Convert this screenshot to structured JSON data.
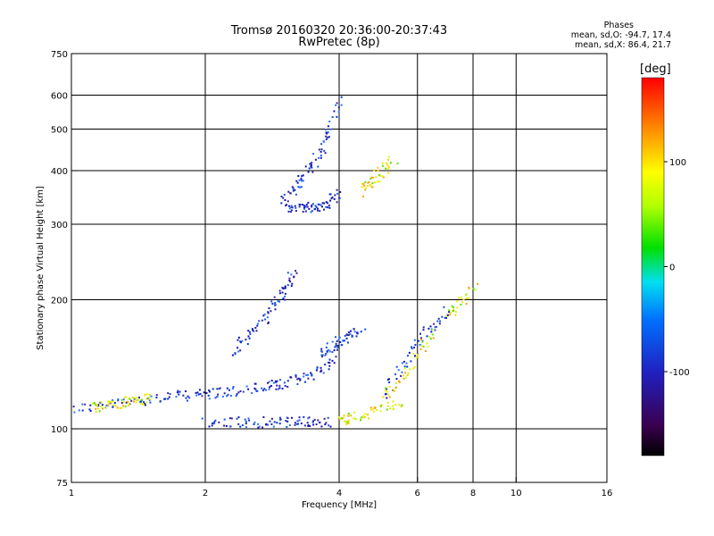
{
  "header": {
    "title_line1": "Tromsø 20160320 20:36:00-20:37:43",
    "title_line2": "RwPretec (8p)",
    "stats_title": "Phases",
    "stats_o": "mean, sd,O: -94.7, 17.4",
    "stats_x": "mean, sd,X:  86.4, 21.7"
  },
  "colorbar": {
    "unit_label": "[deg]",
    "ticks": [
      100,
      0,
      -100
    ],
    "range": [
      -180,
      180
    ]
  },
  "chart_data": {
    "type": "scatter",
    "xlabel": "Frequency [MHz]",
    "ylabel": "Stationary phase Virtual Height [km]",
    "x_scale": "log",
    "y_scale": "log",
    "xlim": [
      1,
      16
    ],
    "ylim": [
      75,
      750
    ],
    "x_ticks": [
      1,
      2,
      4,
      6,
      8,
      10,
      16
    ],
    "y_ticks": [
      75,
      100,
      200,
      300,
      400,
      500,
      600,
      750
    ],
    "grid": true,
    "color_variable": "phase [deg]",
    "series": [
      {
        "mode": "O",
        "traces": [
          {
            "x": [
              1.0,
              1.2,
              1.4,
              1.6,
              1.8,
              2.0,
              2.2,
              2.5,
              2.8,
              3.0,
              3.3,
              3.6,
              3.9
            ],
            "y": [
              112,
              114,
              117,
              119,
              120,
              121,
              122,
              124,
              126,
              128,
              132,
              138,
              145
            ]
          },
          {
            "x": [
              2.0,
              2.3,
              2.6,
              2.9,
              3.2,
              3.5,
              3.8
            ],
            "y": [
              104,
              104,
              104,
              104,
              104,
              104,
              104
            ]
          },
          {
            "x": [
              2.3,
              2.5,
              2.7,
              2.9,
              3.0,
              3.2
            ],
            "y": [
              150,
              165,
              180,
              200,
              215,
              235
            ]
          },
          {
            "x": [
              3.0,
              3.2,
              3.4,
              3.6,
              3.8,
              4.0
            ],
            "y": [
              332,
              330,
              330,
              332,
              340,
              355
            ]
          },
          {
            "x": [
              3.0,
              3.2,
              3.4,
              3.6,
              3.8,
              4.0
            ],
            "y": [
              345,
              370,
              400,
              440,
              500,
              600
            ]
          },
          {
            "x": [
              3.6,
              3.8,
              4.0,
              4.2,
              4.5
            ],
            "y": [
              150,
              155,
              160,
              165,
              170
            ]
          },
          {
            "x": [
              5.0,
              5.5,
              6.0,
              6.5,
              7.0
            ],
            "y": [
              120,
              140,
              160,
              175,
              190
            ]
          }
        ]
      },
      {
        "mode": "X",
        "traces": [
          {
            "x": [
              1.1,
              1.2,
              1.3,
              1.4,
              1.5
            ],
            "y": [
              112,
              114,
              116,
              117,
              118
            ]
          },
          {
            "x": [
              4.0,
              4.2,
              4.5,
              5.0,
              5.5
            ],
            "y": [
              106,
              106,
              108,
              112,
              116
            ]
          },
          {
            "x": [
              4.5,
              4.7,
              5.0,
              5.3
            ],
            "y": [
              360,
              380,
              400,
              430
            ]
          },
          {
            "x": [
              5.0,
              5.5,
              6.0,
              6.5
            ],
            "y": [
              120,
              130,
              150,
              170
            ]
          },
          {
            "x": [
              7.0,
              7.5,
              8.0
            ],
            "y": [
              185,
              200,
              215
            ]
          }
        ]
      }
    ]
  }
}
